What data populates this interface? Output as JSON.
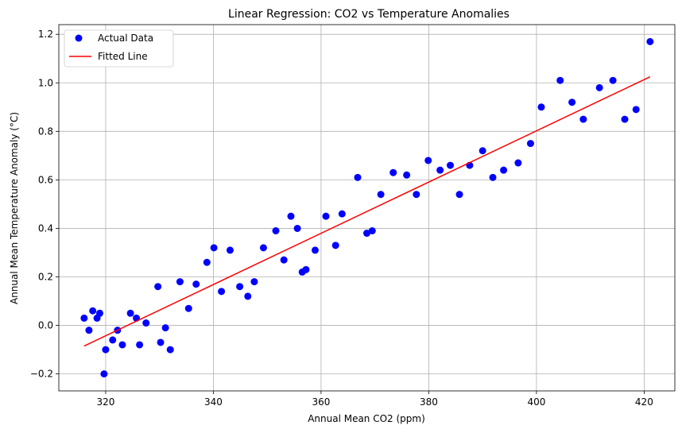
{
  "chart_data": {
    "type": "scatter",
    "title": "Linear Regression: CO2 vs Temperature Anomalies",
    "xlabel": "Annual Mean CO2 (ppm)",
    "ylabel": "Annual Mean Temperature Anomaly (°C)",
    "xlim": [
      311.3,
      425.7
    ],
    "ylim": [
      -0.27,
      1.24
    ],
    "xticks": [
      320,
      340,
      360,
      380,
      400,
      420
    ],
    "yticks": [
      -0.2,
      0.0,
      0.2,
      0.4,
      0.6,
      0.8,
      1.0,
      1.2
    ],
    "grid": true,
    "legend_position": "top-left",
    "series": [
      {
        "name": "Actual Data",
        "kind": "scatter",
        "color": "#0000ff",
        "points": [
          [
            316.0,
            0.03
          ],
          [
            316.9,
            -0.02
          ],
          [
            317.6,
            0.06
          ],
          [
            318.4,
            0.03
          ],
          [
            318.9,
            0.05
          ],
          [
            319.7,
            -0.2
          ],
          [
            320.0,
            -0.1
          ],
          [
            321.3,
            -0.06
          ],
          [
            322.2,
            -0.02
          ],
          [
            323.1,
            -0.08
          ],
          [
            324.6,
            0.05
          ],
          [
            325.7,
            0.03
          ],
          [
            326.3,
            -0.08
          ],
          [
            327.5,
            0.01
          ],
          [
            329.7,
            0.16
          ],
          [
            330.2,
            -0.07
          ],
          [
            331.1,
            -0.01
          ],
          [
            332.0,
            -0.1
          ],
          [
            333.8,
            0.18
          ],
          [
            335.4,
            0.07
          ],
          [
            336.8,
            0.17
          ],
          [
            338.8,
            0.26
          ],
          [
            340.1,
            0.32
          ],
          [
            341.5,
            0.14
          ],
          [
            343.1,
            0.31
          ],
          [
            344.9,
            0.16
          ],
          [
            346.4,
            0.12
          ],
          [
            347.6,
            0.18
          ],
          [
            349.3,
            0.32
          ],
          [
            351.6,
            0.39
          ],
          [
            353.1,
            0.27
          ],
          [
            354.4,
            0.45
          ],
          [
            355.6,
            0.4
          ],
          [
            356.5,
            0.22
          ],
          [
            357.2,
            0.23
          ],
          [
            358.9,
            0.31
          ],
          [
            360.9,
            0.45
          ],
          [
            362.7,
            0.33
          ],
          [
            363.9,
            0.46
          ],
          [
            366.8,
            0.61
          ],
          [
            368.5,
            0.38
          ],
          [
            369.5,
            0.39
          ],
          [
            371.1,
            0.54
          ],
          [
            373.4,
            0.63
          ],
          [
            375.9,
            0.62
          ],
          [
            377.7,
            0.54
          ],
          [
            379.9,
            0.68
          ],
          [
            382.1,
            0.64
          ],
          [
            384.0,
            0.66
          ],
          [
            385.7,
            0.54
          ],
          [
            387.6,
            0.66
          ],
          [
            390.0,
            0.72
          ],
          [
            391.9,
            0.61
          ],
          [
            393.9,
            0.64
          ],
          [
            396.6,
            0.67
          ],
          [
            398.9,
            0.75
          ],
          [
            400.9,
            0.9
          ],
          [
            404.4,
            1.01
          ],
          [
            406.6,
            0.92
          ],
          [
            408.7,
            0.85
          ],
          [
            411.7,
            0.98
          ],
          [
            414.2,
            1.01
          ],
          [
            416.4,
            0.85
          ],
          [
            418.5,
            0.89
          ],
          [
            421.1,
            1.17
          ]
        ]
      },
      {
        "name": "Fitted Line",
        "kind": "line",
        "color": "#ff0000",
        "points": [
          [
            316.0,
            -0.085
          ],
          [
            421.1,
            1.025
          ]
        ]
      }
    ]
  }
}
